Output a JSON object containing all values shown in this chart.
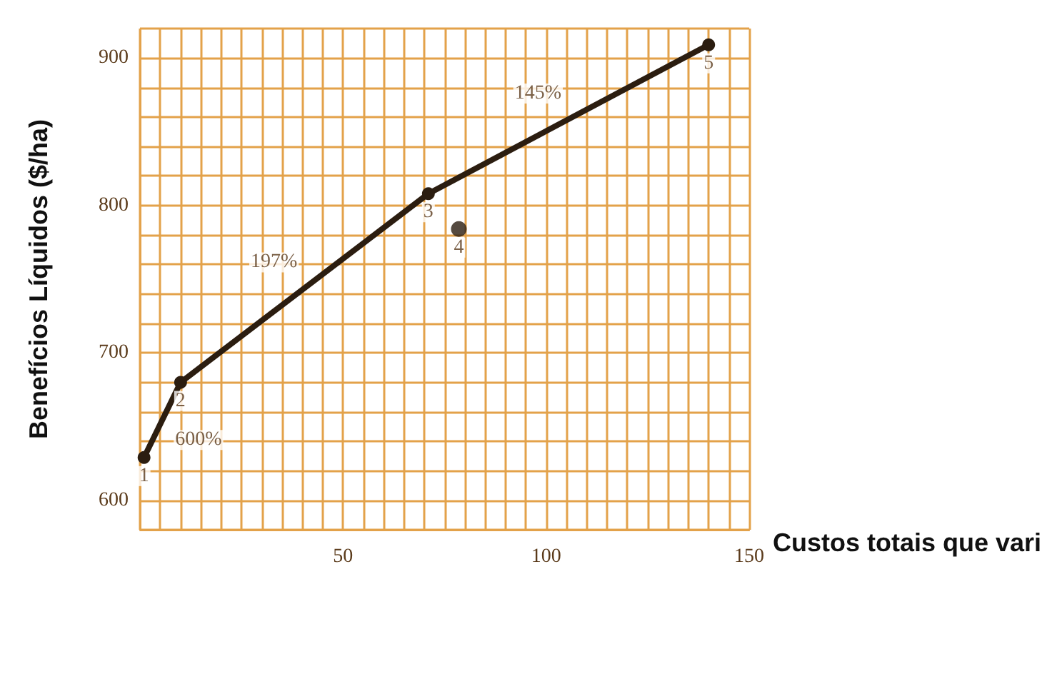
{
  "chart_data": {
    "type": "line",
    "xlabel": "Custos totais que vari",
    "ylabel": "Benefícios Líquidos ($/ha)",
    "xlim": [
      0,
      150
    ],
    "ylim": [
      580,
      920
    ],
    "xticks": [
      50,
      100,
      150
    ],
    "yticks": [
      600,
      700,
      800,
      900
    ],
    "grid": true,
    "marker": "circle",
    "line_style": "solid",
    "series": [
      {
        "color": "#2b1d10",
        "x": [
          1,
          10,
          71,
          140
        ],
        "values": [
          629,
          680,
          808,
          909
        ]
      },
      {
        "type": "scatter",
        "color": "#2b1d10",
        "x": [
          78.5
        ],
        "values": [
          784
        ]
      }
    ],
    "annotations": [
      {
        "text": "1",
        "x": 1,
        "y": 629
      },
      {
        "text": "2",
        "x": 10,
        "y": 680
      },
      {
        "text": "3",
        "x": 71,
        "y": 808
      },
      {
        "text": "4",
        "x": 78.5,
        "y": 784
      },
      {
        "text": "5",
        "x": 140,
        "y": 909
      },
      "600%",
      "197%",
      "145%"
    ]
  }
}
